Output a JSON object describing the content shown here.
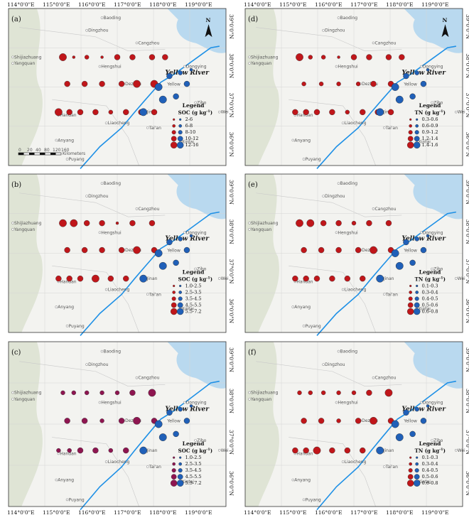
{
  "panels": [
    {
      "id": "a",
      "label": "(a)",
      "title_main": "SOC",
      "unit": "g kg",
      "sup": "-1",
      "classes": [
        "2-6",
        "6-8",
        "8-10",
        "10-12",
        "12-16"
      ],
      "north_arrow": true,
      "scale_bar": true
    },
    {
      "id": "d",
      "label": "(d)",
      "title_main": "TN",
      "unit": "g kg",
      "sup": "-1",
      "classes": [
        "0.3-0.6",
        "0.6-0.9",
        "0.9-1.2",
        "1.2-1.4",
        "1.4-1.6"
      ],
      "north_arrow": true,
      "scale_bar": false
    },
    {
      "id": "b",
      "label": "(b)",
      "title_main": "SOC",
      "unit": "g kg",
      "sup": "-1",
      "classes": [
        "1.0-2.5",
        "2.5-3.5",
        "3.5-4.5",
        "4.5-5.5",
        "5.5-7.2"
      ],
      "north_arrow": false,
      "scale_bar": false
    },
    {
      "id": "e",
      "label": "(e)",
      "title_main": "TN",
      "unit": "g kg",
      "sup": "-1",
      "classes": [
        "0.1-0.3",
        "0.3-0.4",
        "0.4-0.5",
        "0.5-0.6",
        "0.6-0.8"
      ],
      "north_arrow": false,
      "scale_bar": false
    },
    {
      "id": "c",
      "label": "(c)",
      "title_main": "SOC",
      "unit": "g kg",
      "sup": "-1",
      "classes": [
        "1.0-2.5",
        "2.5-3.5",
        "3.5-4.5",
        "4.5-5.5",
        "5.5-7.2"
      ],
      "north_arrow": false,
      "scale_bar": false
    },
    {
      "id": "f",
      "label": "(f)",
      "title_main": "TN",
      "unit": "g kg",
      "sup": "-1",
      "classes": [
        "0.1-0.3",
        "0.3-0.4",
        "0.4-0.5",
        "0.5-0.6",
        "0.6-0.8"
      ],
      "north_arrow": false,
      "scale_bar": false
    }
  ],
  "legend_heading": "Legend",
  "river_label": "Yellow River",
  "river_small_label": "Yellow",
  "north_letter": "N",
  "top_ticks": [
    "114°0'0\"E",
    "115°0'0\"E",
    "116°0'0\"E",
    "117°0'0\"E",
    "118°0'0\"E",
    "119°0'0\"E"
  ],
  "bottom_ticks": [
    "114°0'0\"E",
    "115°0'0\"E",
    "116°0'0\"E",
    "117°0'0\"E",
    "118°0'0\"E",
    "119°0'0\"E"
  ],
  "lat_ticks": [
    "39°0'0\"N",
    "38°0'0\"N",
    "37°0'0\"N",
    "36°0'0\"N"
  ],
  "cities": [
    "Baoding",
    "Dingzhou",
    "Cangzhou",
    "Shijiazhuang",
    "Yangquan",
    "Hengshui",
    "Dezhou",
    "Dongying",
    "Jinan",
    "Zibo",
    "Liaocheng",
    "Tai'an",
    "Anyang",
    "Puyang",
    "Xintai",
    "Handan",
    "Wei"
  ],
  "scale_bar": {
    "ticks": [
      "0",
      "20",
      "40",
      "80",
      "120",
      "160"
    ],
    "unit": "Kilometers"
  },
  "colors": {
    "red": "#c0161a",
    "blue": "#2060b8",
    "purple": "#8e1550",
    "water": "#b9d9ef",
    "land": "#f3f3f0",
    "river": "#1e90e6",
    "city": "#999999"
  },
  "chart_data": {
    "type": "proportional-symbol map",
    "transect_rows": [
      "north",
      "middle",
      "south"
    ],
    "site_size_classes_by_panel": {
      "a": {
        "north": [
          4,
          1,
          2,
          1,
          3,
          3,
          3,
          3
        ],
        "middle": [
          3,
          3,
          3,
          3,
          4,
          4
        ],
        "south": [
          4,
          3,
          3,
          3,
          2,
          3,
          3,
          3
        ]
      },
      "d": {
        "north": [
          4,
          2,
          2,
          1,
          3,
          3,
          3,
          3
        ],
        "middle": [
          2,
          2,
          2,
          2,
          3,
          3
        ],
        "south": [
          3,
          3,
          3,
          3,
          2,
          3,
          3,
          3
        ]
      },
      "b": {
        "north": [
          4,
          4,
          3,
          3,
          1,
          3,
          3
        ],
        "middle": [
          3,
          3,
          3,
          3,
          4,
          3
        ],
        "south": [
          3,
          3,
          3,
          4,
          3,
          3
        ]
      },
      "e": {
        "north": [
          4,
          4,
          3,
          3,
          2,
          3,
          3
        ],
        "middle": [
          3,
          3,
          3,
          3,
          4,
          3
        ],
        "south": [
          3,
          3,
          3,
          3,
          3,
          3
        ]
      },
      "c": {
        "north": [
          2,
          2,
          2,
          2,
          2,
          3,
          4
        ],
        "middle": [
          3,
          3,
          2,
          3,
          4,
          3
        ],
        "south": [
          2,
          2,
          3,
          3,
          2,
          3
        ]
      },
      "f": {
        "north": [
          2,
          2,
          2,
          2,
          2,
          3,
          4
        ],
        "middle": [
          3,
          3,
          2,
          3,
          4,
          3
        ],
        "south": [
          3,
          3,
          4,
          3,
          3,
          3
        ]
      }
    }
  }
}
